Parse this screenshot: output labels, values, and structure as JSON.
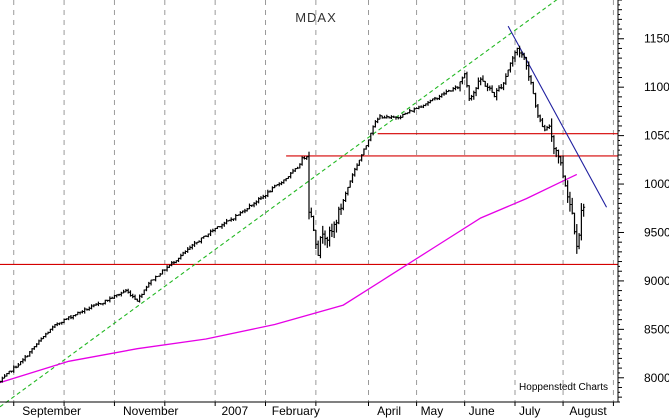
{
  "chart_data": {
    "type": "ohlc",
    "title": "MDAX",
    "credit": "Hoppenstedt Charts",
    "xlabel": "",
    "ylabel": "",
    "x_range": [
      0,
      270
    ],
    "y_range": [
      7750,
      11900
    ],
    "y_ticks": [
      8000,
      8500,
      9000,
      9500,
      10000,
      10500,
      11000,
      11500
    ],
    "x_month_labels": [
      {
        "label": "September",
        "x": 8
      },
      {
        "label": "November",
        "x": 52
      },
      {
        "label": "2007",
        "x": 95
      },
      {
        "label": "February",
        "x": 117
      },
      {
        "label": "April",
        "x": 163
      },
      {
        "label": "May",
        "x": 182
      },
      {
        "label": "June",
        "x": 203
      },
      {
        "label": "July",
        "x": 225
      },
      {
        "label": "August",
        "x": 247
      }
    ],
    "x_grid": [
      6,
      28,
      50,
      72,
      94,
      116,
      138,
      161,
      182,
      203,
      225,
      246,
      268
    ],
    "anchors": [
      [
        0,
        7960
      ],
      [
        5,
        8080
      ],
      [
        10,
        8180
      ],
      [
        15,
        8320
      ],
      [
        20,
        8450
      ],
      [
        25,
        8560
      ],
      [
        30,
        8620
      ],
      [
        35,
        8680
      ],
      [
        40,
        8730
      ],
      [
        45,
        8780
      ],
      [
        50,
        8840
      ],
      [
        55,
        8900
      ],
      [
        60,
        8800
      ],
      [
        65,
        8980
      ],
      [
        70,
        9080
      ],
      [
        75,
        9180
      ],
      [
        80,
        9280
      ],
      [
        85,
        9380
      ],
      [
        90,
        9470
      ],
      [
        95,
        9560
      ],
      [
        100,
        9620
      ],
      [
        105,
        9700
      ],
      [
        110,
        9790
      ],
      [
        115,
        9870
      ],
      [
        120,
        9970
      ],
      [
        125,
        10060
      ],
      [
        130,
        10170
      ],
      [
        132,
        10260
      ],
      [
        134,
        10290
      ],
      [
        135,
        9750
      ],
      [
        137,
        9550
      ],
      [
        139,
        9300
      ],
      [
        141,
        9520
      ],
      [
        143,
        9450
      ],
      [
        145,
        9500
      ],
      [
        148,
        9700
      ],
      [
        151,
        9900
      ],
      [
        154,
        10100
      ],
      [
        157,
        10250
      ],
      [
        160,
        10400
      ],
      [
        163,
        10600
      ],
      [
        166,
        10700
      ],
      [
        170,
        10680
      ],
      [
        175,
        10700
      ],
      [
        180,
        10760
      ],
      [
        185,
        10820
      ],
      [
        190,
        10880
      ],
      [
        195,
        10950
      ],
      [
        200,
        11000
      ],
      [
        203,
        11150
      ],
      [
        205,
        10900
      ],
      [
        207,
        10950
      ],
      [
        210,
        11080
      ],
      [
        213,
        11000
      ],
      [
        216,
        10920
      ],
      [
        220,
        11050
      ],
      [
        223,
        11250
      ],
      [
        226,
        11400
      ],
      [
        229,
        11300
      ],
      [
        232,
        11050
      ],
      [
        235,
        10700
      ],
      [
        238,
        10550
      ],
      [
        240,
        10600
      ],
      [
        242,
        10400
      ],
      [
        244,
        10300
      ],
      [
        246,
        10100
      ],
      [
        248,
        9900
      ],
      [
        250,
        9700
      ],
      [
        252,
        9400
      ],
      [
        253,
        9500
      ],
      [
        254,
        9700
      ],
      [
        255,
        9800
      ]
    ],
    "moving_average": [
      [
        0,
        7950
      ],
      [
        30,
        8170
      ],
      [
        60,
        8300
      ],
      [
        90,
        8400
      ],
      [
        120,
        8550
      ],
      [
        150,
        8750
      ],
      [
        170,
        9050
      ],
      [
        190,
        9350
      ],
      [
        210,
        9650
      ],
      [
        230,
        9850
      ],
      [
        245,
        10020
      ],
      [
        252,
        10100
      ]
    ],
    "horizontal_lines": [
      {
        "y": 10520,
        "x_start": 165,
        "x_end": 270,
        "color": "#d40000"
      },
      {
        "y": 10290,
        "x_start": 125,
        "x_end": 270,
        "color": "#d40000"
      },
      {
        "y": 9170,
        "x_start": 0,
        "x_end": 270,
        "color": "#d40000"
      }
    ],
    "trend_lines": [
      {
        "from": [
          0,
          7700
        ],
        "to": [
          246,
          11950
        ],
        "color": "#22b822",
        "dashed": true
      },
      {
        "from": [
          222,
          11630
        ],
        "to": [
          265,
          9760
        ],
        "color": "#1f1f9f",
        "dashed": false
      }
    ],
    "colors": {
      "bars": "#000000",
      "moving_average": "#e600e6",
      "support_resistance": "#d40000",
      "uptrend": "#22b822",
      "downtrend": "#1f1f9f",
      "grid": "#9a9a9a"
    },
    "grid": true,
    "legend": "none"
  }
}
